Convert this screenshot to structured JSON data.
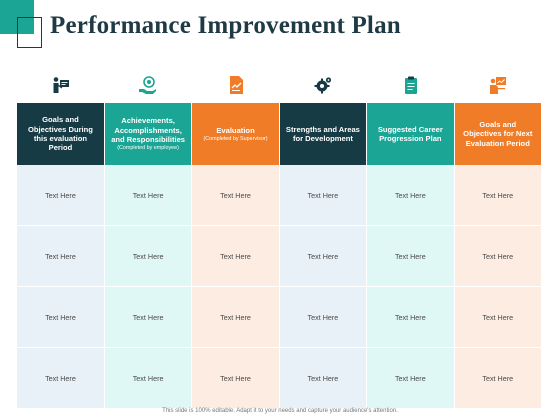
{
  "slide": {
    "title": "Performance Improvement Plan",
    "footer": "This slide is 100% editable. Adapt it to your needs and capture your audience's attention."
  },
  "colors": {
    "dark": "#173b45",
    "teal": "#1aa595",
    "orange": "#f07c28"
  },
  "columns": [
    {
      "title": "Goals and Objectives During this evaluation Period",
      "subtitle": "",
      "icon": "presenter-icon"
    },
    {
      "title": "Achievements, Accomplishments, and Responsibilities",
      "subtitle": "(Completed by employee)",
      "icon": "hand-target-icon"
    },
    {
      "title": "Evaluation",
      "subtitle": "(Completed by Supervisor)",
      "icon": "document-chart-icon"
    },
    {
      "title": "Strengths and Areas for Development",
      "subtitle": "",
      "icon": "gears-icon"
    },
    {
      "title": "Suggested Career Progression Plan",
      "subtitle": "",
      "icon": "clipboard-icon"
    },
    {
      "title": "Goals and Objectives for Next Evaluation Period",
      "subtitle": "",
      "icon": "person-board-icon"
    }
  ],
  "rows": [
    [
      "Text Here",
      "Text Here",
      "Text Here",
      "Text Here",
      "Text Here",
      "Text Here"
    ],
    [
      "Text Here",
      "Text Here",
      "Text Here",
      "Text Here",
      "Text Here",
      "Text Here"
    ],
    [
      "Text Here",
      "Text Here",
      "Text Here",
      "Text Here",
      "Text Here",
      "Text Here"
    ],
    [
      "Text Here",
      "Text Here",
      "Text Here",
      "Text Here",
      "Text Here",
      "Text Here"
    ]
  ]
}
